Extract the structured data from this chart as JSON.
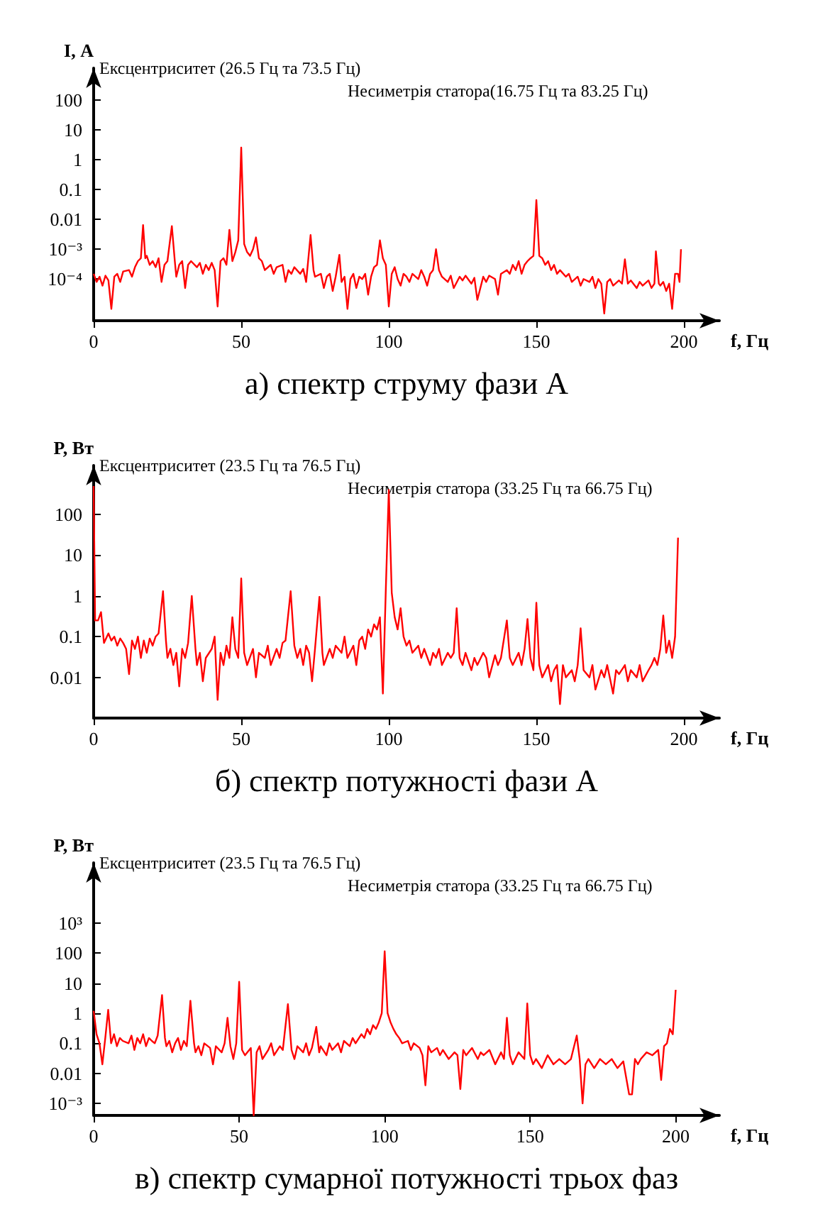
{
  "chart_data": [
    {
      "type": "line",
      "title": "а) спектр струму фази А",
      "xlabel": "f, Гц",
      "ylabel": "I, А",
      "log": "y",
      "marker": "none",
      "xlim": [
        0,
        212
      ],
      "xticks": [
        0,
        50,
        100,
        150,
        200
      ],
      "ylim": [
        4e-06,
        1200
      ],
      "yticks": [
        {
          "value": 0.0001,
          "label": "10⁻⁴"
        },
        {
          "value": 0.001,
          "label": "10⁻³"
        },
        0.01,
        0.1,
        1,
        10,
        100
      ],
      "annotations": [
        "Ексцентриситет (26.5 Гц та 73.5 Гц)",
        "Несиметрія статора(16.75 Гц та 83.25 Гц)"
      ],
      "x": [
        0,
        1,
        2,
        3,
        4,
        5,
        6,
        7,
        8,
        9,
        10,
        12,
        13,
        14,
        15,
        16,
        16.75,
        17.5,
        18,
        19,
        20,
        21,
        22,
        23,
        24,
        25,
        26.5,
        27.5,
        28,
        29,
        30,
        31,
        32,
        33,
        35,
        36,
        37,
        38,
        39,
        40,
        41,
        42,
        43,
        44,
        45,
        46,
        47,
        48,
        49,
        50,
        51,
        52,
        53,
        54,
        55,
        56,
        57,
        58,
        60,
        61,
        62,
        64,
        65,
        66,
        67,
        68,
        70,
        71,
        72,
        73.5,
        74.5,
        75,
        77,
        78,
        79,
        80,
        81,
        82,
        83.25,
        84,
        85,
        86,
        87,
        88,
        89,
        90,
        91,
        92,
        93,
        94,
        95,
        96,
        97,
        98,
        99,
        100,
        101,
        102,
        103,
        104,
        105,
        106,
        107,
        108,
        110,
        111,
        112,
        113,
        114,
        115,
        116,
        117,
        118,
        120,
        121,
        122,
        124,
        125,
        126,
        128,
        129,
        130,
        132,
        133,
        134,
        136,
        137,
        138,
        140,
        141,
        142,
        143,
        144,
        145,
        146,
        147,
        148,
        149,
        150,
        151,
        152,
        153,
        154,
        155,
        156,
        157,
        158,
        160,
        161,
        162,
        164,
        165,
        166,
        168,
        169,
        170,
        171,
        172,
        173,
        174,
        175,
        176,
        178,
        179,
        180,
        181,
        182,
        184,
        185,
        186,
        188,
        189,
        190,
        190.5,
        191.5,
        192,
        193,
        194,
        195,
        196,
        197,
        198,
        198.5,
        199
      ],
      "series": [
        {
          "color": "#ff0000",
          "values": [
            0.00015,
            8e-05,
            0.00012,
            6e-05,
            0.00013,
            9e-05,
            1e-05,
            0.00012,
            0.00015,
            8e-05,
            0.00018,
            0.0002,
            0.00012,
            0.00025,
            0.0004,
            0.0005,
            0.0065,
            0.0005,
            0.0006,
            0.0003,
            0.0004,
            0.00025,
            0.0005,
            8e-05,
            0.0003,
            0.0004,
            0.006,
            0.0004,
            0.00012,
            0.0003,
            0.0004,
            5e-05,
            0.0003,
            0.0004,
            0.00025,
            0.00035,
            0.00015,
            0.0003,
            0.0002,
            0.00035,
            0.0002,
            1.2e-05,
            0.0004,
            0.0005,
            0.0003,
            0.0045,
            0.0004,
            0.0008,
            0.002,
            2.6,
            0.0015,
            0.0008,
            0.0006,
            0.001,
            0.0025,
            0.0005,
            0.0004,
            0.0002,
            0.0003,
            0.00015,
            0.00025,
            0.0003,
            8e-05,
            0.0002,
            0.00015,
            0.00025,
            0.00015,
            0.00022,
            8e-05,
            0.003,
            0.0002,
            0.00012,
            0.00015,
            5e-05,
            0.00012,
            0.00015,
            4e-05,
            0.00012,
            0.00065,
            8e-05,
            0.00012,
            1e-05,
            0.0001,
            0.00015,
            5e-05,
            0.00012,
            0.0001,
            0.00015,
            3e-05,
            0.00012,
            0.00025,
            0.0003,
            0.002,
            0.0005,
            0.0003,
            1.2e-05,
            0.00015,
            0.00025,
            0.0001,
            6e-05,
            0.00015,
            0.00012,
            8e-05,
            0.00015,
            0.0001,
            0.0002,
            0.00012,
            6e-05,
            0.00015,
            0.0002,
            0.001,
            0.0002,
            0.00012,
            8e-05,
            0.00013,
            5e-05,
            0.00012,
            9e-05,
            0.00013,
            7e-05,
            0.00011,
            2e-05,
            0.00012,
            8e-05,
            0.00013,
            0.0001,
            3e-05,
            0.00015,
            0.0002,
            0.00015,
            0.0003,
            0.0002,
            0.0004,
            0.00015,
            0.0003,
            0.0004,
            0.0005,
            0.0006,
            0.045,
            0.0006,
            0.0005,
            0.0003,
            0.0004,
            0.0002,
            0.0003,
            0.00015,
            0.0002,
            0.00012,
            0.00015,
            8e-05,
            0.00012,
            6e-05,
            0.0001,
            8e-05,
            0.00012,
            5e-05,
            0.0001,
            7e-05,
            7e-06,
            8e-05,
            0.0001,
            6e-05,
            9e-05,
            7e-05,
            0.00046,
            7e-05,
            9e-05,
            5e-05,
            8e-05,
            6e-05,
            9e-05,
            5e-05,
            7e-05,
            0.00085,
            7e-05,
            6e-05,
            8e-05,
            4e-05,
            7e-05,
            1e-05,
            0.00015,
            0.00015,
            8e-05,
            0.001
          ]
        }
      ]
    },
    {
      "type": "line",
      "title": "б) спектр потужності фази А",
      "xlabel": "f, Гц",
      "ylabel": "P, Вт",
      "log": "y",
      "marker": "none",
      "xlim": [
        0,
        212
      ],
      "xticks": [
        0,
        50,
        100,
        150,
        200
      ],
      "ylim": [
        0.001,
        1600
      ],
      "yticks": [
        0.01,
        0.1,
        1,
        10,
        100
      ],
      "annotations": [
        "Ексцентриситет (23.5 Гц та 76.5 Гц)",
        "Несиметрія статора (33.25 Гц та 66.75 Гц)"
      ],
      "x": [
        0,
        0.5,
        1.5,
        2.5,
        3.5,
        5,
        6,
        7,
        8,
        9,
        10,
        11,
        12,
        13,
        14,
        15,
        16,
        17,
        18,
        19,
        20,
        21,
        22,
        23.5,
        24.5,
        25,
        26,
        27,
        28,
        29,
        30,
        31,
        32,
        33.25,
        34.5,
        35,
        36,
        37,
        38,
        40,
        41,
        42,
        43,
        44,
        45,
        46,
        47,
        48,
        49,
        50,
        51,
        52,
        54,
        55,
        56,
        58,
        59,
        60,
        62,
        63,
        64,
        65,
        66.75,
        68,
        69,
        70,
        71,
        72,
        73,
        74,
        75,
        76.5,
        77.5,
        78,
        80,
        81,
        82,
        84,
        85,
        86,
        88,
        89,
        90,
        91,
        92,
        93,
        94,
        95,
        96,
        97,
        98,
        99,
        100,
        101,
        102,
        103,
        104,
        105,
        106,
        107,
        108,
        110,
        111,
        112,
        114,
        115,
        116,
        117,
        118,
        120,
        121,
        122,
        123,
        124,
        125,
        126,
        128,
        129,
        130,
        132,
        133,
        134,
        136,
        137,
        138,
        140,
        141,
        142,
        144,
        145,
        146,
        147,
        148,
        149,
        150,
        151,
        152,
        154,
        155,
        156,
        157,
        158,
        159,
        160,
        162,
        163,
        164,
        165,
        166,
        168,
        169,
        170,
        172,
        173,
        174,
        176,
        177,
        178,
        180,
        181,
        182,
        184,
        185,
        186,
        188,
        189,
        190,
        191,
        192,
        193,
        194,
        195,
        196,
        197,
        198
      ],
      "series": [
        {
          "color": "#ff0000",
          "values": [
            500,
            0.25,
            0.25,
            0.4,
            0.07,
            0.12,
            0.08,
            0.1,
            0.06,
            0.09,
            0.07,
            0.05,
            0.012,
            0.08,
            0.05,
            0.1,
            0.03,
            0.08,
            0.04,
            0.09,
            0.06,
            0.1,
            0.12,
            1.3,
            0.08,
            0.03,
            0.05,
            0.02,
            0.04,
            0.006,
            0.05,
            0.03,
            0.07,
            1,
            0.05,
            0.02,
            0.04,
            0.008,
            0.03,
            0.05,
            0.1,
            0.0028,
            0.04,
            0.02,
            0.06,
            0.03,
            0.3,
            0.05,
            0.03,
            2.7,
            0.04,
            0.02,
            0.05,
            0.01,
            0.04,
            0.03,
            0.06,
            0.02,
            0.05,
            0.03,
            0.07,
            0.08,
            1.3,
            0.06,
            0.03,
            0.05,
            0.02,
            0.06,
            0.04,
            0.008,
            0.05,
            0.95,
            0.04,
            0.02,
            0.05,
            0.03,
            0.06,
            0.04,
            0.1,
            0.03,
            0.06,
            0.02,
            0.08,
            0.1,
            0.05,
            0.15,
            0.1,
            0.2,
            0.15,
            0.3,
            0.004,
            1.5,
            400,
            1.2,
            0.3,
            0.15,
            0.5,
            0.1,
            0.06,
            0.08,
            0.04,
            0.06,
            0.03,
            0.05,
            0.02,
            0.04,
            0.03,
            0.05,
            0.02,
            0.04,
            0.03,
            0.04,
            0.5,
            0.03,
            0.02,
            0.04,
            0.015,
            0.03,
            0.02,
            0.04,
            0.03,
            0.01,
            0.035,
            0.02,
            0.03,
            0.25,
            0.03,
            0.02,
            0.04,
            0.02,
            0.05,
            0.27,
            0.03,
            0.015,
            0.68,
            0.02,
            0.01,
            0.02,
            0.008,
            0.015,
            0.02,
            0.0022,
            0.02,
            0.01,
            0.015,
            0.008,
            0.02,
            0.16,
            0.015,
            0.01,
            0.02,
            0.005,
            0.015,
            0.01,
            0.02,
            0.004,
            0.015,
            0.012,
            0.02,
            0.008,
            0.015,
            0.01,
            0.02,
            0.008,
            0.015,
            0.02,
            0.03,
            0.02,
            0.05,
            0.33,
            0.04,
            0.08,
            0.03,
            0.1,
            27
          ]
        }
      ]
    },
    {
      "type": "line",
      "title": "в) спектр сумарної потужності трьох фаз",
      "xlabel": "f, Гц",
      "ylabel": "P, Вт",
      "log": "y",
      "marker": "none",
      "xlim": [
        0,
        215
      ],
      "xticks": [
        0,
        50,
        100,
        150,
        200
      ],
      "ylim": [
        0.0004,
        100000
      ],
      "yticks": [
        {
          "value": 0.001,
          "label": "10⁻³"
        },
        0.01,
        0.1,
        1,
        10,
        100,
        {
          "value": 1000,
          "label": "10³"
        }
      ],
      "annotations": [
        "Ексцентриситет (23.5 Гц та 76.5 Гц)",
        "Несиметрія статора (33.25 Гц та 66.75 Гц)"
      ],
      "x": [
        0,
        1,
        2,
        3,
        4,
        5,
        6,
        7,
        8,
        9,
        10,
        12,
        13,
        14,
        15,
        16,
        17,
        18,
        19,
        20,
        21,
        22,
        23.5,
        24.5,
        25,
        26,
        27,
        28,
        29,
        30,
        31,
        32,
        33.25,
        34.5,
        35,
        36,
        37,
        38,
        40,
        41,
        42,
        44,
        45,
        46,
        47,
        48,
        49,
        50,
        51,
        52,
        54,
        55,
        56,
        57,
        58,
        60,
        61,
        62,
        64,
        65,
        66.75,
        68,
        69,
        70,
        72,
        73,
        74,
        75,
        76.5,
        77.5,
        78,
        80,
        81,
        82,
        84,
        85,
        86,
        88,
        89,
        90,
        92,
        93,
        94,
        95,
        96,
        97,
        98,
        99,
        100,
        101,
        102,
        103,
        104,
        105,
        106,
        108,
        109,
        110,
        112,
        113,
        114,
        115,
        116,
        118,
        119,
        120,
        122,
        124,
        125,
        126,
        127,
        128,
        130,
        132,
        133,
        134,
        136,
        138,
        140,
        141,
        142,
        143,
        144,
        146,
        148,
        149,
        150,
        151,
        152,
        154,
        156,
        158,
        160,
        162,
        164,
        166,
        167,
        168,
        169,
        170,
        172,
        174,
        176,
        178,
        180,
        182,
        184,
        185,
        186,
        187,
        188,
        190,
        192,
        194,
        195,
        196,
        197,
        198,
        199,
        200
      ],
      "series": [
        {
          "color": "#ff0000",
          "values": [
            1.2,
            0.2,
            0.1,
            0.02,
            0.15,
            1.3,
            0.1,
            0.2,
            0.08,
            0.15,
            0.12,
            0.1,
            0.18,
            0.06,
            0.15,
            0.1,
            0.2,
            0.08,
            0.15,
            0.12,
            0.1,
            0.18,
            4,
            0.15,
            0.08,
            0.12,
            0.05,
            0.1,
            0.15,
            0.06,
            0.12,
            0.08,
            2.6,
            0.1,
            0.05,
            0.08,
            0.04,
            0.1,
            0.07,
            0.02,
            0.08,
            0.05,
            0.1,
            0.7,
            0.08,
            0.03,
            0.1,
            11,
            0.06,
            0.04,
            0.07,
            0.0004,
            0.05,
            0.08,
            0.03,
            0.06,
            0.1,
            0.04,
            0.08,
            0.06,
            2,
            0.06,
            0.03,
            0.08,
            0.05,
            0.1,
            0.04,
            0.07,
            0.35,
            0.05,
            0.08,
            0.04,
            0.1,
            0.06,
            0.1,
            0.05,
            0.12,
            0.08,
            0.15,
            0.1,
            0.2,
            0.15,
            0.3,
            0.2,
            0.4,
            0.3,
            0.5,
            1,
            115,
            1,
            0.5,
            0.3,
            0.2,
            0.15,
            0.1,
            0.12,
            0.06,
            0.1,
            0.07,
            0.04,
            0.004,
            0.08,
            0.05,
            0.07,
            0.04,
            0.06,
            0.03,
            0.05,
            0.04,
            0.003,
            0.06,
            0.04,
            0.07,
            0.03,
            0.05,
            0.04,
            0.06,
            0.02,
            0.05,
            0.03,
            0.7,
            0.04,
            0.02,
            0.05,
            0.03,
            2.1,
            0.04,
            0.02,
            0.03,
            0.015,
            0.04,
            0.02,
            0.03,
            0.02,
            0.03,
            0.18,
            0.03,
            0.001,
            0.02,
            0.03,
            0.015,
            0.03,
            0.02,
            0.03,
            0.015,
            0.025,
            0.002,
            0.002,
            0.03,
            0.02,
            0.03,
            0.05,
            0.04,
            0.06,
            0.006,
            0.08,
            0.1,
            0.3,
            0.2,
            6
          ]
        }
      ]
    }
  ]
}
